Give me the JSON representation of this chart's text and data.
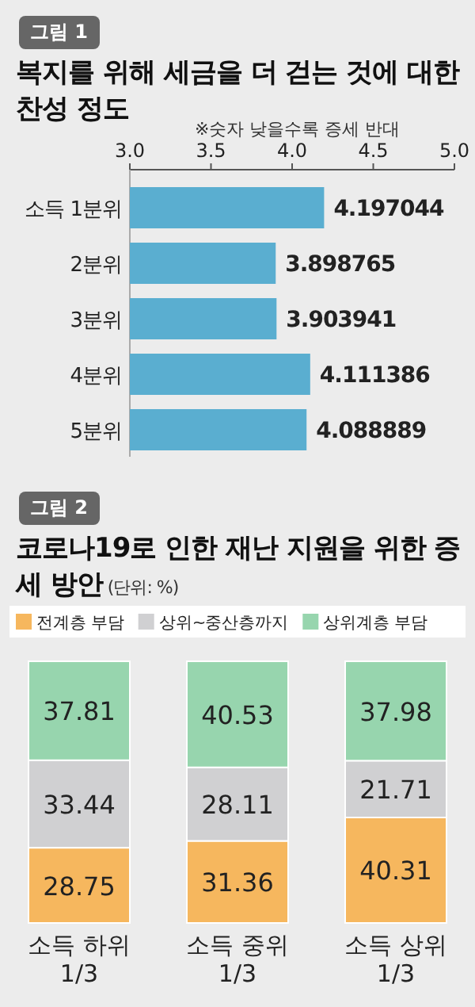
{
  "chart_data": [
    {
      "type": "bar",
      "orientation": "horizontal",
      "title": "복지를 위해 세금을 더 걷는 것에 대한 찬성 정도",
      "subtitle": "※숫자 낮을수록 증세 반대",
      "annotations": [
        "그림 1"
      ],
      "categories": [
        "소득 1분위",
        "2분위",
        "3분위",
        "4분위",
        "5분위"
      ],
      "values": [
        4.197044,
        3.898765,
        3.903941,
        4.111386,
        4.088889
      ],
      "color": "#5aaed0",
      "xlim": [
        3,
        5
      ],
      "xticks": [
        {
          "value": 3,
          "label": "3.0"
        },
        {
          "value": 3.5,
          "label": "3.5"
        },
        {
          "value": 4,
          "label": "4.0"
        },
        {
          "value": 4.5,
          "label": "4.5"
        },
        {
          "value": 5,
          "label": "5.0"
        }
      ],
      "data_labels": true
    },
    {
      "type": "bar",
      "stacked": true,
      "title": "코로나19로 인한 재난 지원을 위한 증세 방안",
      "subtitle": "(단위: %)",
      "annotations": [
        "그림 2"
      ],
      "categories": [
        "소득 하위 1/3",
        "소득 중위 1/3",
        "소득 상위 1/3"
      ],
      "series": [
        {
          "name": "전계층 부담",
          "color": "#f6b75e",
          "values": [
            28.75,
            31.36,
            40.31
          ]
        },
        {
          "name": "상위~중산층까지",
          "color": "#d0d0d2",
          "values": [
            33.44,
            28.11,
            21.71
          ]
        },
        {
          "name": "상위계층 부담",
          "color": "#97d5ae",
          "values": [
            37.81,
            40.53,
            37.98
          ]
        }
      ],
      "legend": "top",
      "data_labels": true
    }
  ]
}
